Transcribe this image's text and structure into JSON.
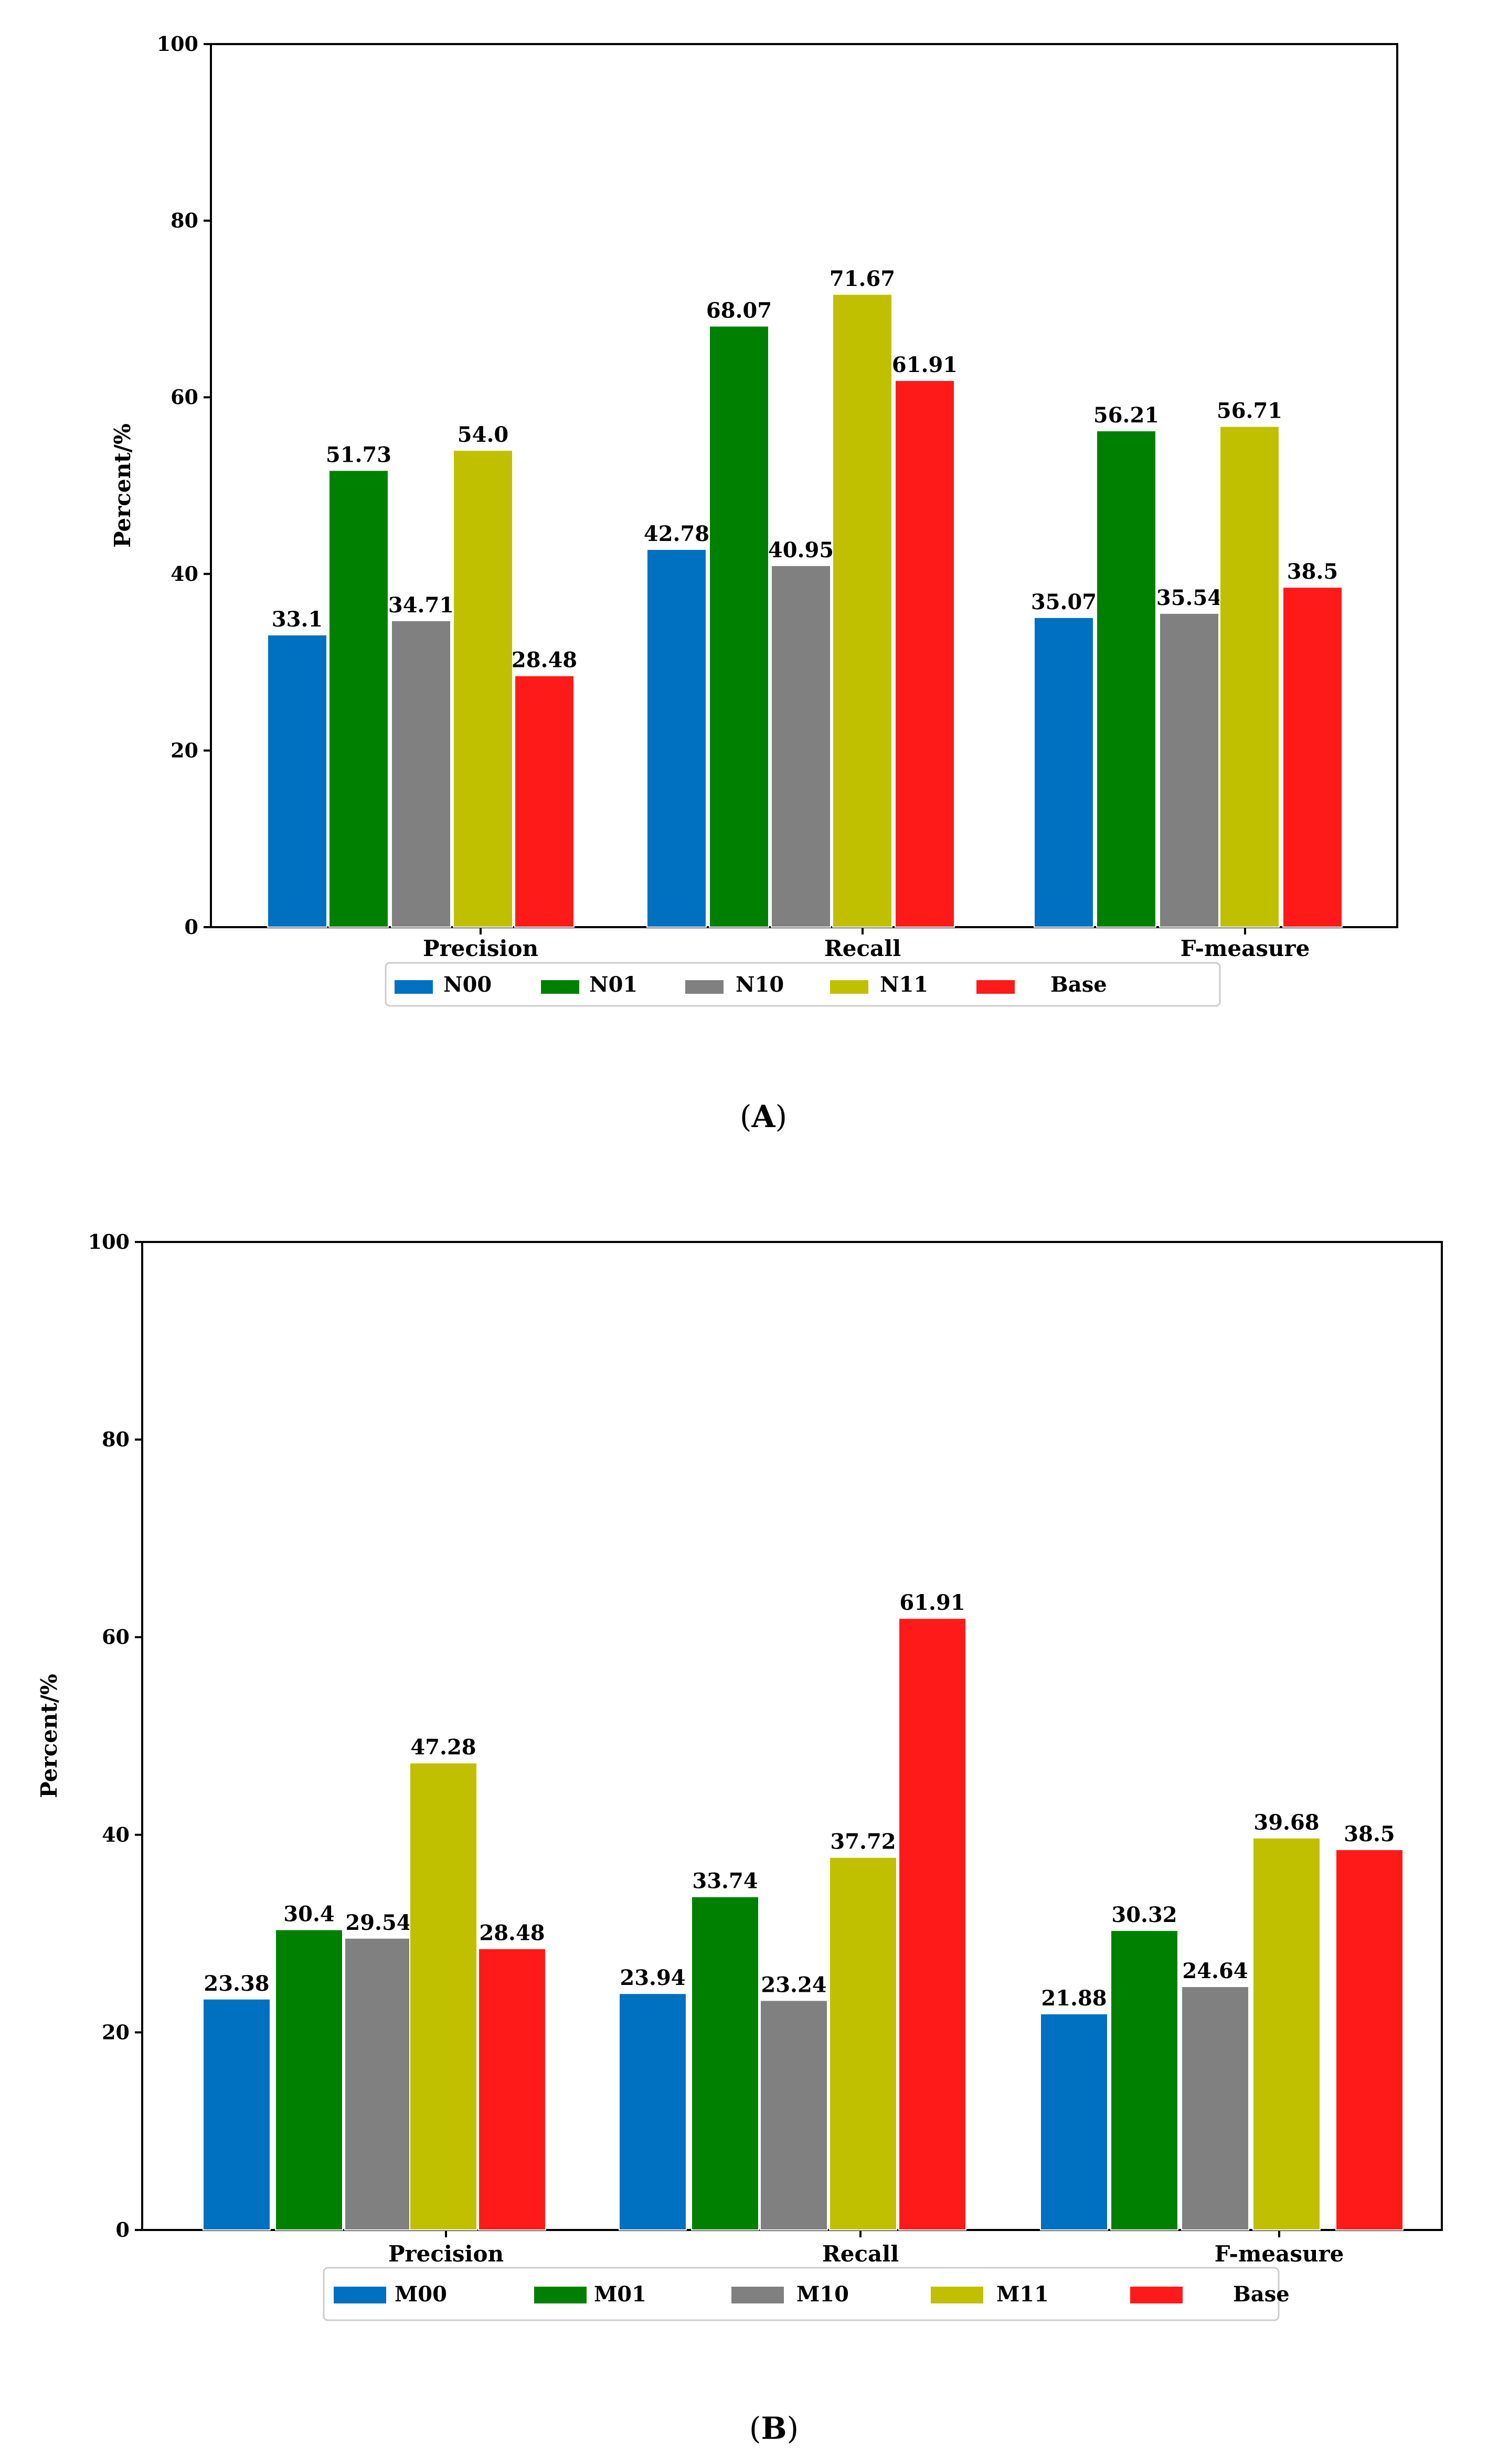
{
  "chart_data": [
    {
      "type": "bar",
      "panel_label": "A",
      "categories": [
        "Precision",
        "Recall",
        "F-measure"
      ],
      "series": [
        {
          "name": "N00",
          "values": [
            33.1,
            42.78,
            35.07
          ]
        },
        {
          "name": "N01",
          "values": [
            51.73,
            68.07,
            56.21
          ]
        },
        {
          "name": "N10",
          "values": [
            34.71,
            40.95,
            35.54
          ]
        },
        {
          "name": "N11",
          "values": [
            54.0,
            71.67,
            56.71
          ]
        },
        {
          "name": "Base",
          "values": [
            28.48,
            61.91,
            38.5
          ]
        }
      ],
      "value_labels": [
        [
          "33.1",
          "42.78",
          "35.07"
        ],
        [
          "51.73",
          "68.07",
          "56.21"
        ],
        [
          "34.71",
          "40.95",
          "35.54"
        ],
        [
          "54.0",
          "71.67",
          "56.71"
        ],
        [
          "28.48",
          "61.91",
          "38.5"
        ]
      ],
      "yticks": [
        0,
        20,
        40,
        60,
        80,
        100
      ],
      "ylim": [
        0,
        100
      ],
      "xlabel": "",
      "ylabel": "Percent/%",
      "legend": "bottom-center",
      "grid": false
    },
    {
      "type": "bar",
      "panel_label": "B",
      "categories": [
        "Precision",
        "Recall",
        "F-measure"
      ],
      "series": [
        {
          "name": "M00",
          "values": [
            23.38,
            23.94,
            21.88
          ]
        },
        {
          "name": "M01",
          "values": [
            30.4,
            33.74,
            30.32
          ]
        },
        {
          "name": "M10",
          "values": [
            29.54,
            23.24,
            24.64
          ]
        },
        {
          "name": "M11",
          "values": [
            47.28,
            37.72,
            39.68
          ]
        },
        {
          "name": "Base",
          "values": [
            28.48,
            61.91,
            38.5
          ]
        }
      ],
      "value_labels": [
        [
          "23.38",
          "23.94",
          "21.88"
        ],
        [
          "30.4",
          "33.74",
          "30.32"
        ],
        [
          "29.54",
          "23.24",
          "24.64"
        ],
        [
          "47.28",
          "37.72",
          "39.68"
        ],
        [
          "28.48",
          "61.91",
          "38.5"
        ]
      ],
      "yticks": [
        0,
        20,
        40,
        60,
        80,
        100
      ],
      "ylim": [
        0,
        100
      ],
      "xlabel": "",
      "ylabel": "Percent/%",
      "legend": "bottom-center",
      "grid": false
    }
  ],
  "colors": [
    "#0070c0",
    "#008000",
    "#808080",
    "#c0c000",
    "#ff1a1a"
  ],
  "axis_color": "#000000"
}
